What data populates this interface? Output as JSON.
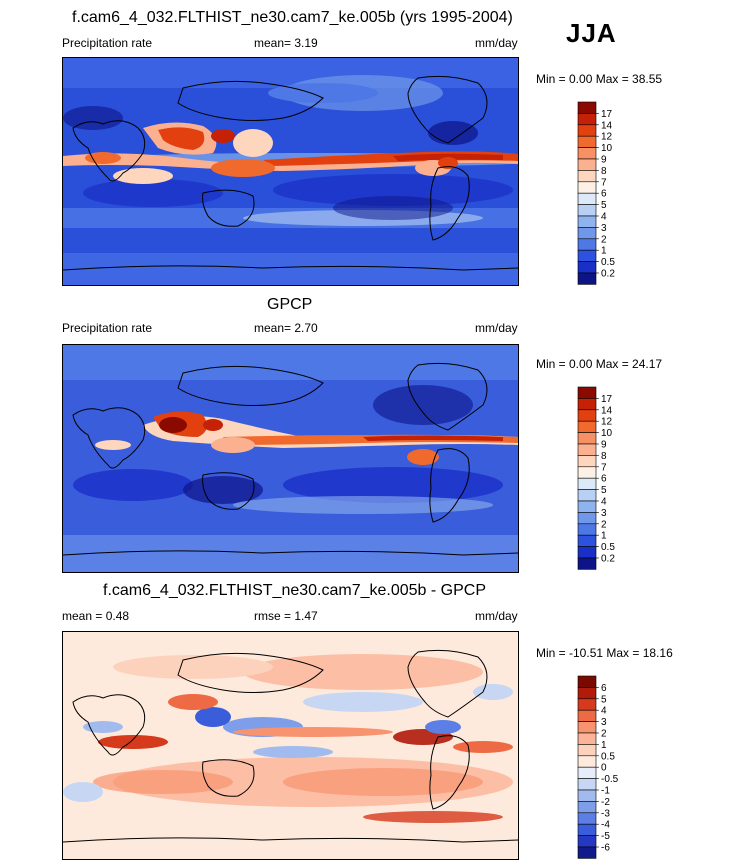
{
  "season": "JJA",
  "panels": [
    {
      "title": "f.cam6_4_032.FLTHIST_ne30.cam7_ke.005b (yrs 1995-2004)",
      "left_label": "Precipitation rate",
      "center_label": "mean=   3.19",
      "right_label": "mm/day",
      "minmax": "Min =   0.00 Max =  38.55",
      "colorbar": {
        "levels": [
          "17",
          "14",
          "12",
          "10",
          "9",
          "8",
          "7",
          "6",
          "5",
          "4",
          "3",
          "2",
          "1",
          "0.5",
          "0.2"
        ],
        "colors": [
          "#8b0a00",
          "#c42106",
          "#e2400f",
          "#f06a2e",
          "#f89065",
          "#fbb190",
          "#fdd6bd",
          "#fdf1e6",
          "#dce9f9",
          "#b7d0f4",
          "#8fb3ee",
          "#6f98ea",
          "#4d78e6",
          "#2e52e0",
          "#1a2fc8",
          "#0d1488"
        ]
      }
    },
    {
      "title": "GPCP",
      "left_label": "Precipitation rate",
      "center_label": "mean=   2.70",
      "right_label": "mm/day",
      "minmax": "Min =   0.00 Max =  24.17",
      "colorbar": {
        "levels": [
          "17",
          "14",
          "12",
          "10",
          "9",
          "8",
          "7",
          "6",
          "5",
          "4",
          "3",
          "2",
          "1",
          "0.5",
          "0.2"
        ],
        "colors": [
          "#8b0a00",
          "#c42106",
          "#e2400f",
          "#f06a2e",
          "#f89065",
          "#fbb190",
          "#fdd6bd",
          "#fdf1e6",
          "#dce9f9",
          "#b7d0f4",
          "#8fb3ee",
          "#6f98ea",
          "#4d78e6",
          "#2e52e0",
          "#1a2fc8",
          "#0d1488"
        ]
      }
    },
    {
      "title": "f.cam6_4_032.FLTHIST_ne30.cam7_ke.005b - GPCP",
      "left_label": "mean =   0.48",
      "center_label": "rmse =   1.47",
      "right_label": "mm/day",
      "minmax": "Min = -10.51 Max =  18.16",
      "colorbar": {
        "levels": [
          "6",
          "5",
          "4",
          "3",
          "2",
          "1",
          "0.5",
          "0",
          "-0.5",
          "-1",
          "-2",
          "-3",
          "-4",
          "-5",
          "-6"
        ],
        "colors": [
          "#7a0a00",
          "#b01b0b",
          "#d63a1c",
          "#ee6a45",
          "#f8936f",
          "#fbb497",
          "#fdd2bd",
          "#fdeadc",
          "#e8eef9",
          "#c6d6f3",
          "#a2bbee",
          "#7e9eea",
          "#5b7fe5",
          "#3a5ddc",
          "#2438c4",
          "#101a8a"
        ]
      }
    }
  ]
}
